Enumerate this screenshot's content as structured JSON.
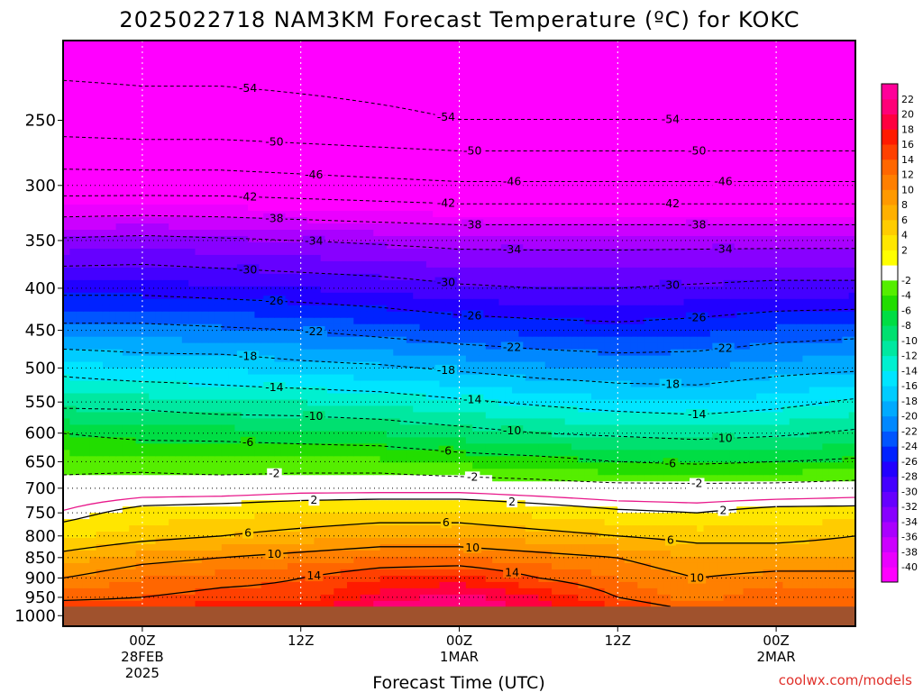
{
  "chart_data": {
    "type": "heatmap",
    "title": "2025022718 NAM3KM Forecast Temperature (ºC) for KOKC",
    "xlabel": "Forecast Time (UTC)",
    "ylabel": "",
    "credit": "coolwx.com/models",
    "y_axis": {
      "scale": "log-pressure",
      "range_hPa": [
        1030,
        200
      ],
      "ticks": [
        250,
        300,
        350,
        400,
        450,
        500,
        550,
        600,
        650,
        700,
        750,
        800,
        850,
        900,
        950,
        1000
      ],
      "surface_pressure_hPa": 975
    },
    "x_axis": {
      "range_hours": [
        -6,
        54
      ],
      "ticks": [
        {
          "hour": 0,
          "lines": [
            "00Z",
            "28FEB",
            "2025"
          ]
        },
        {
          "hour": 12,
          "lines": [
            "12Z"
          ]
        },
        {
          "hour": 24,
          "lines": [
            "00Z",
            "1MAR"
          ]
        },
        {
          "hour": 36,
          "lines": [
            "12Z"
          ]
        },
        {
          "hour": 48,
          "lines": [
            "00Z",
            "2MAR"
          ]
        }
      ]
    },
    "colorbar": {
      "min": -42,
      "max": 24,
      "step": 2,
      "tick_labels": [
        "22",
        "20",
        "18",
        "16",
        "14",
        "12",
        "10",
        "8",
        "6",
        "4",
        "2",
        "-2",
        "-4",
        "-6",
        "-8",
        "-10",
        "-12",
        "-14",
        "-16",
        "-18",
        "-20",
        "-22",
        "-24",
        "-26",
        "-28",
        "-30",
        "-32",
        "-34",
        "-36",
        "-38",
        "-40"
      ],
      "colors": [
        "#ff00ff",
        "#ea00ff",
        "#cc00ff",
        "#aa00ff",
        "#8800ff",
        "#6600ff",
        "#4400ff",
        "#2200ff",
        "#0022ff",
        "#0055ff",
        "#0088ff",
        "#00aaff",
        "#00ccff",
        "#00e5ff",
        "#00f0d0",
        "#00e8a0",
        "#00e070",
        "#00dd44",
        "#22dd00",
        "#55ee00",
        "#ffffff",
        "#ffff00",
        "#ffe600",
        "#ffcc00",
        "#ffb000",
        "#ff9900",
        "#ff7f00",
        "#ff6600",
        "#ff4000",
        "#ff1a00",
        "#ff0040",
        "#ff0077",
        "#ff0099"
      ]
    },
    "isotherm_labels": {
      "cold_dashed": [
        "-54",
        "-50",
        "-46",
        "-42",
        "-38",
        "-34",
        "-30",
        "-26",
        "-22",
        "-18",
        "-14",
        "-10",
        "-6",
        "-2"
      ],
      "warm_solid": [
        "2",
        "6",
        "10",
        "14"
      ]
    },
    "temperature_profile_dataset": {
      "pressure_hPa": [
        975,
        950,
        900,
        850,
        800,
        750,
        700,
        650,
        600,
        550,
        500,
        450,
        400,
        350,
        300,
        250,
        200
      ],
      "hours": [
        -6,
        0,
        6,
        12,
        18,
        24,
        30,
        36,
        42,
        48,
        54
      ],
      "temperature_C": [
        [
          16.0,
          16.0,
          17.0,
          17.0,
          21.0,
          22.0,
          19.0,
          16.0,
          13.0,
          14.0,
          13.0
        ],
        [
          13.0,
          14.0,
          15.0,
          15.0,
          19.0,
          21.0,
          18.0,
          14.0,
          11.0,
          14.0,
          13.0
        ],
        [
          10.0,
          12.0,
          13.0,
          14.0,
          16.0,
          17.0,
          14.0,
          12.0,
          10.0,
          11.0,
          11.0
        ],
        [
          7.0,
          9.0,
          10.0,
          11.0,
          12.0,
          12.0,
          11.0,
          10.0,
          8.0,
          8.0,
          8.0
        ],
        [
          3.5,
          5.0,
          6.0,
          7.0,
          8.0,
          8.0,
          7.0,
          6.0,
          5.0,
          5.0,
          6.0
        ],
        [
          1.0,
          3.0,
          3.5,
          4.0,
          4.5,
          4.5,
          3.5,
          2.5,
          2.0,
          3.0,
          3.0
        ],
        [
          -1.0,
          -0.5,
          -0.5,
          0.0,
          0.0,
          0.0,
          -0.5,
          -1.0,
          -1.0,
          -1.0,
          -0.5
        ],
        [
          -3.0,
          -3.0,
          -3.5,
          -3.5,
          -3.5,
          -4.5,
          -5.0,
          -6.0,
          -6.5,
          -6.0,
          -5.5
        ],
        [
          -6.0,
          -7.0,
          -7.0,
          -7.5,
          -8.0,
          -9.0,
          -10.0,
          -10.5,
          -11.0,
          -10.5,
          -9.5
        ],
        [
          -11.0,
          -11.0,
          -12.0,
          -12.0,
          -12.5,
          -13.5,
          -14.5,
          -15.5,
          -16.0,
          -15.0,
          -13.5
        ],
        [
          -15.0,
          -16.0,
          -16.0,
          -17.0,
          -17.5,
          -18.5,
          -19.5,
          -20.0,
          -20.0,
          -19.0,
          -18.5
        ],
        [
          -21.0,
          -21.0,
          -21.5,
          -22.0,
          -23.0,
          -24.0,
          -24.5,
          -25.0,
          -24.5,
          -23.5,
          -23.0
        ],
        [
          -27.0,
          -27.0,
          -27.5,
          -28.0,
          -28.5,
          -29.5,
          -30.0,
          -30.0,
          -29.5,
          -29.0,
          -29.0
        ],
        [
          -33.5,
          -33.0,
          -33.5,
          -34.0,
          -34.5,
          -35.0,
          -35.0,
          -35.0,
          -35.0,
          -35.0,
          -35.0
        ],
        [
          -44.0,
          -44.0,
          -44.0,
          -44.5,
          -45.0,
          -45.5,
          -45.5,
          -45.5,
          -45.5,
          -45.5,
          -45.5
        ],
        [
          -52.0,
          -52.5,
          -52.5,
          -53.0,
          -53.5,
          -54.0,
          -54.0,
          -54.0,
          -54.0,
          -54.0,
          -54.0
        ],
        [
          -56.0,
          -56.0,
          -56.0,
          -56.0,
          -56.0,
          -56.0,
          -56.0,
          -56.0,
          -56.0,
          -56.0,
          -56.0
        ]
      ]
    }
  }
}
